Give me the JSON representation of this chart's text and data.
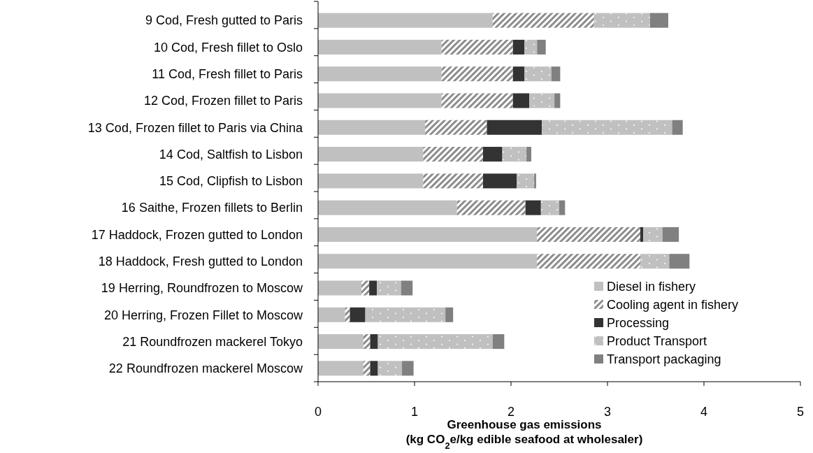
{
  "chart_data": {
    "type": "bar",
    "orientation": "horizontal",
    "stacked": true,
    "xlabel": "Greenhouse gas emissions\n(kg CO$_{2}$e/kg edible seafood at wholesaler)",
    "categories": [
      "9 Cod, Fresh gutted to Paris",
      "10 Cod, Fresh fillet to Oslo",
      "11 Cod, Fresh fillet to Paris",
      "12 Cod, Frozen fillet to Paris",
      "13 Cod, Frozen fillet to Paris via China",
      "14 Cod, Saltfish to Lisbon",
      "15 Cod, Clipfish to Lisbon",
      "16 Saithe, Frozen fillets to Berlin",
      "17 Haddock, Frozen gutted to London",
      "18 Haddock, Fresh gutted to London",
      "19 Herring, Roundfrozen to Moscow",
      "20 Herring, Frozen Fillet to Moscow",
      "21 Roundfrozen mackerel Tokyo",
      "22 Roundfrozen mackerel Moscow"
    ],
    "series": [
      {
        "name": "Diesel in fishery",
        "color": "#c0c0c0",
        "values": [
          1.81,
          1.28,
          1.28,
          1.28,
          1.11,
          1.09,
          1.09,
          1.44,
          2.27,
          2.27,
          0.45,
          0.28,
          0.47,
          0.47
        ]
      },
      {
        "name": "Cooling agent in fishery",
        "color": "#8c8c8c",
        "values": [
          1.05,
          0.74,
          0.74,
          0.74,
          0.64,
          0.62,
          0.62,
          0.71,
          1.07,
          1.07,
          0.08,
          0.05,
          0.07,
          0.07
        ]
      },
      {
        "name": "Processing",
        "color": "#333333",
        "values": [
          0,
          0.12,
          0.12,
          0.17,
          0.57,
          0.2,
          0.35,
          0.16,
          0.03,
          0,
          0.08,
          0.16,
          0.08,
          0.08
        ]
      },
      {
        "name": "Product Transport",
        "color": "#c0c0c0",
        "values": [
          0.58,
          0.13,
          0.28,
          0.26,
          1.35,
          0.25,
          0.18,
          0.19,
          0.2,
          0.3,
          0.25,
          0.83,
          1.19,
          0.25
        ]
      },
      {
        "name": "Transport packaging",
        "color": "#808080",
        "values": [
          0.19,
          0.09,
          0.09,
          0.06,
          0.11,
          0.05,
          0.02,
          0.06,
          0.17,
          0.21,
          0.12,
          0.08,
          0.12,
          0.12
        ]
      }
    ],
    "xlim": [
      0,
      5
    ],
    "xticks": [
      0,
      1,
      2,
      3,
      4,
      5
    ],
    "legend": "bottom right"
  }
}
